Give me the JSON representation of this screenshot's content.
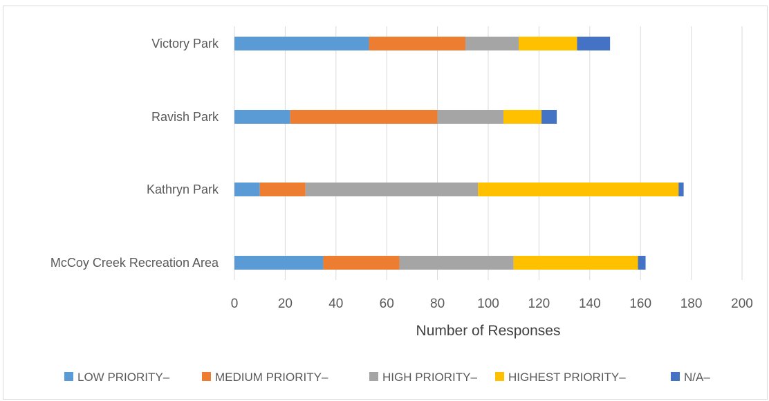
{
  "chart_data": {
    "type": "bar",
    "orientation": "horizontal",
    "stacked": true,
    "categories": [
      "McCoy Creek Recreation Area",
      "Kathryn Park",
      "Ravish Park",
      "Victory Park"
    ],
    "series": [
      {
        "name": "LOW PRIORITY–",
        "color": "#5b9bd5",
        "values": [
          35,
          10,
          22,
          53
        ]
      },
      {
        "name": "MEDIUM PRIORITY–",
        "color": "#ed7d31",
        "values": [
          30,
          18,
          58,
          38
        ]
      },
      {
        "name": "HIGH PRIORITY–",
        "color": "#a5a5a5",
        "values": [
          45,
          68,
          26,
          21
        ]
      },
      {
        "name": "HIGHEST PRIORITY–",
        "color": "#ffc000",
        "values": [
          49,
          79,
          15,
          23
        ]
      },
      {
        "name": "N/A–",
        "color": "#4472c4",
        "values": [
          3,
          2,
          6,
          13
        ]
      }
    ],
    "title": "",
    "xlabel": "Number of Responses",
    "ylabel": "",
    "xlim": [
      0,
      200
    ],
    "x_ticks": [
      0,
      20,
      40,
      60,
      80,
      100,
      120,
      140,
      160,
      180,
      200
    ],
    "grid": "vertical",
    "legend_position": "bottom"
  }
}
